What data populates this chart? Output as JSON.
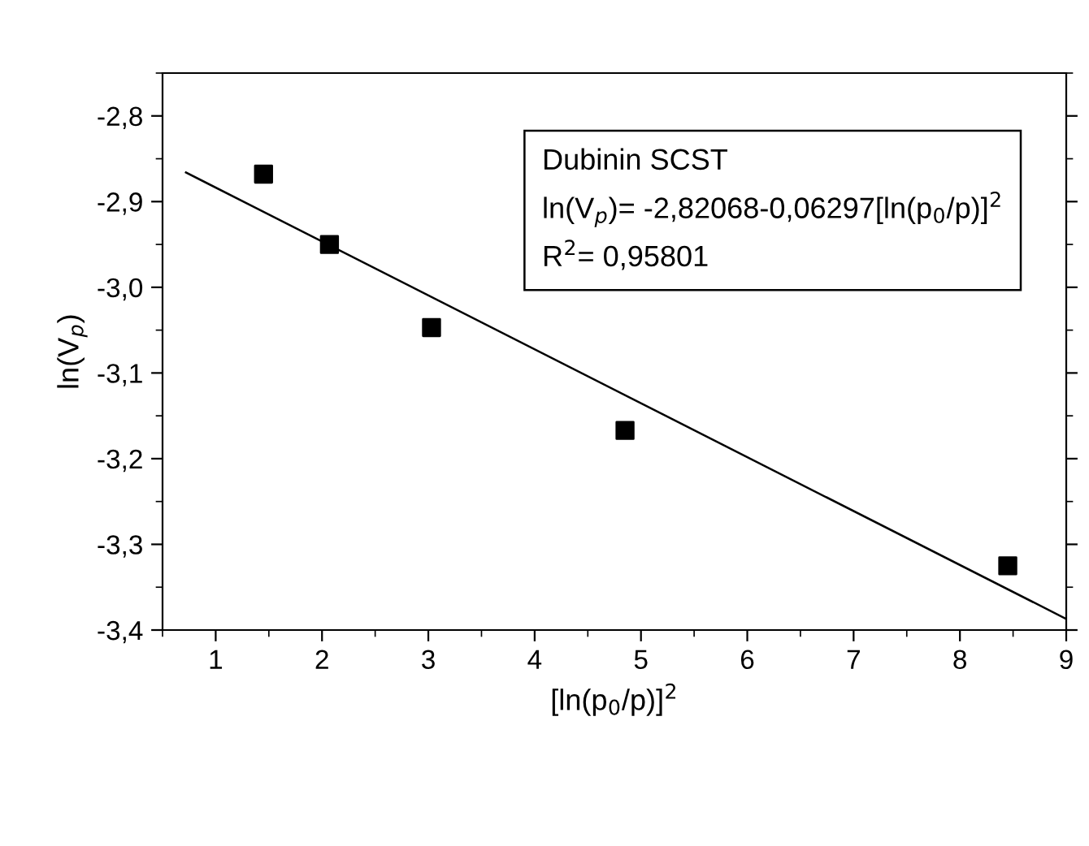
{
  "chart_data": {
    "type": "scatter",
    "xlabel": "[ln(p$_{0}$/p)]$^{2}$",
    "ylabel": "ln(V$_{p}$)",
    "xlim": [
      0.5,
      9
    ],
    "ylim": [
      -3.4,
      -2.75
    ],
    "xticks": [
      1,
      2,
      3,
      4,
      5,
      6,
      7,
      8,
      9
    ],
    "yticks": [
      {
        "value": -3.4,
        "label": "-3,4"
      },
      {
        "value": -3.3,
        "label": "-3,3"
      },
      {
        "value": -3.2,
        "label": "-3,2"
      },
      {
        "value": -3.1,
        "label": "-3,1"
      },
      {
        "value": -3.0,
        "label": "-3,0"
      },
      {
        "value": -2.9,
        "label": "-2,9"
      },
      {
        "value": -2.8,
        "label": "-2,8"
      }
    ],
    "grid": false,
    "legend": false,
    "series": [
      {
        "color": "#000000",
        "marker": "square",
        "x": [
          1.45,
          2.07,
          3.03,
          4.85,
          8.45
        ],
        "values": [
          -2.868,
          -2.95,
          -3.047,
          -3.167,
          -3.325
        ]
      },
      {
        "type": "line",
        "color": "#000000",
        "marker": "none",
        "line_style": "solid",
        "x": [
          0.72,
          9
        ],
        "values": [
          -2.866,
          -3.387
        ]
      }
    ],
    "annotations": [
      "Dubinin SCST",
      "ln(V$_{p}$)= -2,82068-0,06297[ln(p$_{0}$/p)]$^{2}$",
      "R$^{2}$= 0,95801"
    ]
  }
}
